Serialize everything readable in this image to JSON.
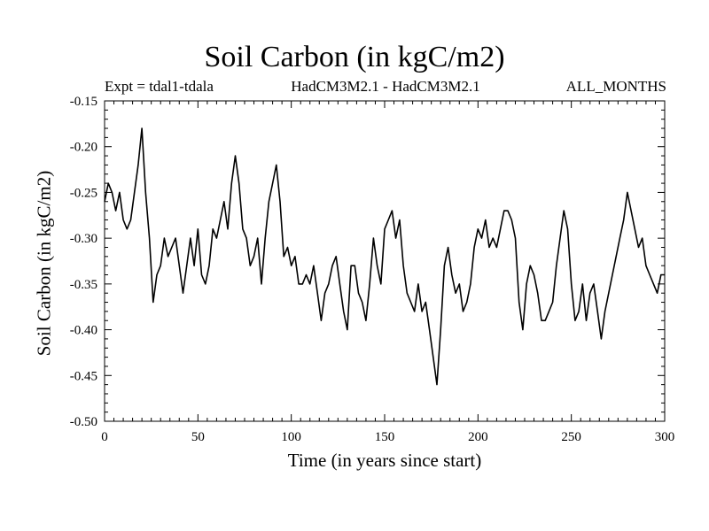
{
  "chart_data": {
    "type": "line",
    "title": "Soil Carbon (in kgC/m2)",
    "subtitle_left": "Expt = tdal1-tdala",
    "subtitle_center": "HadCM3M2.1 - HadCM3M2.1",
    "subtitle_right": "ALL_MONTHS",
    "xlabel": "Time (in years since start)",
    "ylabel": "Soil Carbon (in kgC/m2)",
    "xlim": [
      0,
      300
    ],
    "ylim": [
      -0.5,
      -0.15
    ],
    "xticks": [
      "0",
      "50",
      "100",
      "150",
      "200",
      "250",
      "300"
    ],
    "yticks": [
      "-0.15",
      "-0.20",
      "-0.25",
      "-0.30",
      "-0.35",
      "-0.40",
      "-0.45",
      "-0.50"
    ],
    "grid": false,
    "legend": "none",
    "line_color": "#000000",
    "series": [
      {
        "x": [
          0,
          2,
          4,
          6,
          8,
          10,
          12,
          14,
          16,
          18,
          20,
          22,
          24,
          26,
          28,
          30,
          32,
          34,
          36,
          38,
          40,
          42,
          44,
          46,
          48,
          50,
          52,
          54,
          56,
          58,
          60,
          62,
          64,
          66,
          68,
          70,
          72,
          74,
          76,
          78,
          80,
          82,
          84,
          86,
          88,
          90,
          92,
          94,
          96,
          98,
          100,
          102,
          104,
          106,
          108,
          110,
          112,
          114,
          116,
          118,
          120,
          122,
          124,
          126,
          128,
          130,
          132,
          134,
          136,
          138,
          140,
          142,
          144,
          146,
          148,
          150,
          152,
          154,
          156,
          158,
          160,
          162,
          164,
          166,
          168,
          170,
          172,
          174,
          176,
          178,
          180,
          182,
          184,
          186,
          188,
          190,
          192,
          194,
          196,
          198,
          200,
          202,
          204,
          206,
          208,
          210,
          212,
          214,
          216,
          218,
          220,
          222,
          224,
          226,
          228,
          230,
          232,
          234,
          236,
          238,
          240,
          242,
          244,
          246,
          248,
          250,
          252,
          254,
          256,
          258,
          260,
          262,
          264,
          266,
          268,
          270,
          272,
          274,
          276,
          278,
          280,
          282,
          284,
          286,
          288,
          290,
          292,
          294,
          296,
          298,
          300
        ],
        "y": [
          -0.26,
          -0.24,
          -0.25,
          -0.27,
          -0.25,
          -0.28,
          -0.29,
          -0.28,
          -0.25,
          -0.22,
          -0.18,
          -0.25,
          -0.3,
          -0.37,
          -0.34,
          -0.33,
          -0.3,
          -0.32,
          -0.31,
          -0.3,
          -0.33,
          -0.36,
          -0.33,
          -0.3,
          -0.33,
          -0.29,
          -0.34,
          -0.35,
          -0.33,
          -0.29,
          -0.3,
          -0.28,
          -0.26,
          -0.29,
          -0.24,
          -0.21,
          -0.24,
          -0.29,
          -0.3,
          -0.33,
          -0.32,
          -0.3,
          -0.35,
          -0.3,
          -0.26,
          -0.24,
          -0.22,
          -0.26,
          -0.32,
          -0.31,
          -0.33,
          -0.32,
          -0.35,
          -0.35,
          -0.34,
          -0.35,
          -0.33,
          -0.36,
          -0.39,
          -0.36,
          -0.35,
          -0.33,
          -0.32,
          -0.35,
          -0.38,
          -0.4,
          -0.33,
          -0.33,
          -0.36,
          -0.37,
          -0.39,
          -0.35,
          -0.3,
          -0.33,
          -0.35,
          -0.29,
          -0.28,
          -0.27,
          -0.3,
          -0.28,
          -0.33,
          -0.36,
          -0.37,
          -0.38,
          -0.35,
          -0.38,
          -0.37,
          -0.4,
          -0.43,
          -0.46,
          -0.4,
          -0.33,
          -0.31,
          -0.34,
          -0.36,
          -0.35,
          -0.38,
          -0.37,
          -0.35,
          -0.31,
          -0.29,
          -0.3,
          -0.28,
          -0.31,
          -0.3,
          -0.31,
          -0.29,
          -0.27,
          -0.27,
          -0.28,
          -0.3,
          -0.37,
          -0.4,
          -0.35,
          -0.33,
          -0.34,
          -0.36,
          -0.39,
          -0.39,
          -0.38,
          -0.37,
          -0.33,
          -0.3,
          -0.27,
          -0.29,
          -0.35,
          -0.39,
          -0.38,
          -0.35,
          -0.39,
          -0.36,
          -0.35,
          -0.38,
          -0.41,
          -0.38,
          -0.36,
          -0.34,
          -0.32,
          -0.3,
          -0.28,
          -0.25,
          -0.27,
          -0.29,
          -0.31,
          -0.3,
          -0.33,
          -0.34,
          -0.35,
          -0.36,
          -0.34,
          -0.34
        ]
      }
    ]
  }
}
